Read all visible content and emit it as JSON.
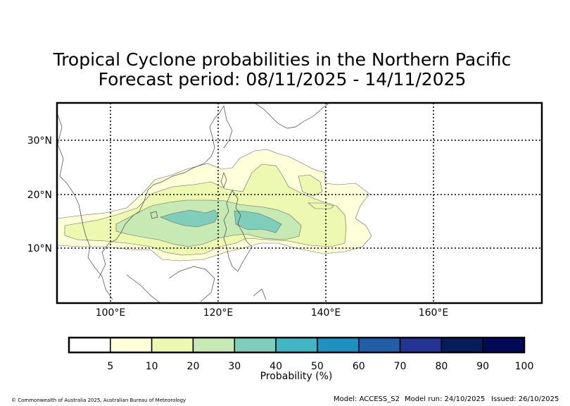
{
  "title": {
    "line1": "Tropical Cyclone probabilities in the Northern Pacific",
    "line2": "Forecast period: 08/11/2025 - 14/11/2025"
  },
  "map": {
    "region": "Northern Pacific",
    "lon_range": [
      90,
      180
    ],
    "lat_range": [
      0,
      37
    ],
    "lon_ticks": [
      {
        "value": 100,
        "label": "100°E"
      },
      {
        "value": 120,
        "label": "120°E"
      },
      {
        "value": 140,
        "label": "140°E"
      },
      {
        "value": 160,
        "label": "160°E"
      }
    ],
    "lat_ticks": [
      {
        "value": 10,
        "label": "10°N"
      },
      {
        "value": 20,
        "label": "20°N"
      },
      {
        "value": 30,
        "label": "30°N"
      }
    ],
    "grid": "dotted",
    "probability_regions": [
      {
        "level": "5-10",
        "color": "#ffffd9"
      },
      {
        "level": "10-20",
        "color": "#edf8b1"
      },
      {
        "level": "20-30",
        "color": "#c7e9b4"
      },
      {
        "level": "30-40",
        "color": "#7fcdbb"
      }
    ]
  },
  "colorbar": {
    "label": "Probability (%)",
    "ticks": [
      "5",
      "10",
      "20",
      "30",
      "40",
      "50",
      "60",
      "70",
      "80",
      "90",
      "100"
    ],
    "colors": [
      "#ffffff",
      "#ffffd9",
      "#edf8b1",
      "#c7e9b4",
      "#7fcdbb",
      "#41b6c4",
      "#1d91c0",
      "#225ea8",
      "#253494",
      "#081d58",
      "#000a58"
    ]
  },
  "footer": {
    "copyright": "© Commonwealth of Australia 2025, Australian Bureau of Meteorology",
    "model": "Model: ACCESS_S2",
    "model_run": "Model run: 24/10/2025",
    "issued": "Issued: 26/10/2025"
  }
}
